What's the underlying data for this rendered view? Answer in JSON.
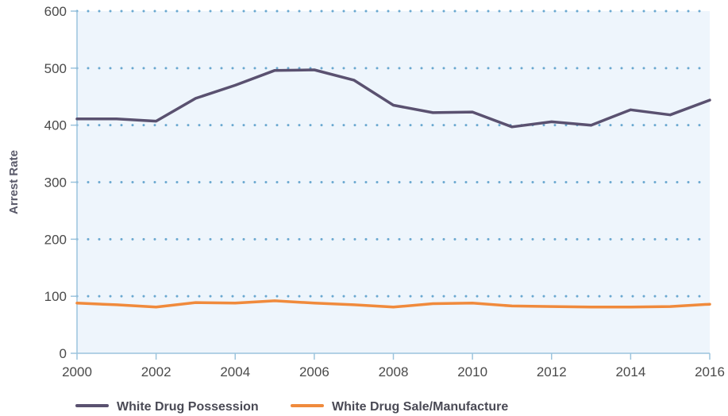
{
  "chart_data": {
    "type": "line",
    "title": "",
    "xlabel": "",
    "ylabel": "Arrest Rate",
    "x": [
      2000,
      2001,
      2002,
      2003,
      2004,
      2005,
      2006,
      2007,
      2008,
      2009,
      2010,
      2011,
      2012,
      2013,
      2014,
      2015,
      2016
    ],
    "xlim": [
      2000,
      2016
    ],
    "ylim": [
      0,
      600
    ],
    "xticks": [
      2000,
      2002,
      2004,
      2006,
      2008,
      2010,
      2012,
      2014,
      2016
    ],
    "yticks": [
      0,
      100,
      200,
      300,
      400,
      500,
      600
    ],
    "grid": "horizontal-dotted",
    "legend_position": "bottom-left",
    "colors": {
      "plot_background": "#eef5fc",
      "grid": "#6aa8d0",
      "axis": "#9cc4dd"
    },
    "series": [
      {
        "name": "White Drug Possession",
        "color": "#5a5170",
        "values": [
          411,
          411,
          407,
          447,
          470,
          496,
          497,
          479,
          435,
          422,
          423,
          397,
          406,
          400,
          427,
          418,
          444
        ]
      },
      {
        "name": "White Drug Sale/Manufacture",
        "color": "#f08a3c",
        "values": [
          88,
          85,
          81,
          89,
          88,
          92,
          88,
          85,
          81,
          87,
          88,
          83,
          82,
          81,
          81,
          82,
          86
        ]
      }
    ]
  }
}
